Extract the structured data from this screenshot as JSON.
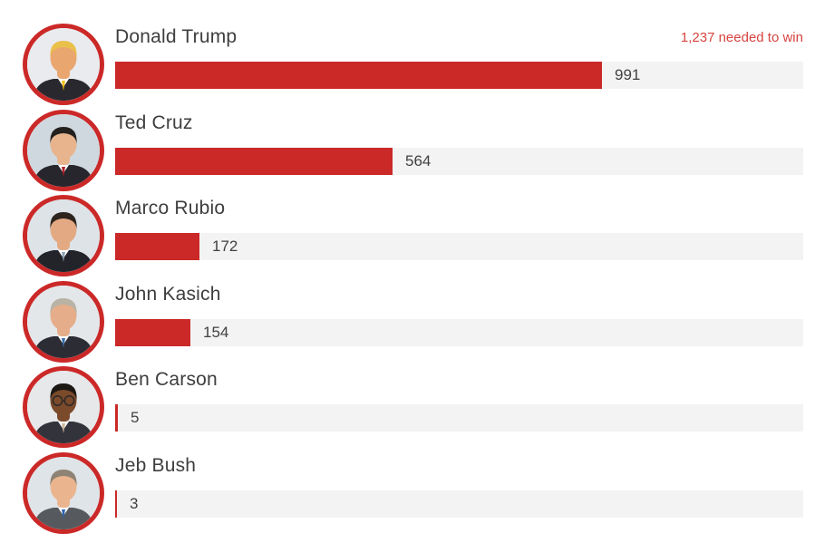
{
  "annotation": {
    "label": "1,237 needed to win",
    "color": "#d6453f"
  },
  "chart_data": {
    "type": "bar",
    "orientation": "horizontal",
    "title": "",
    "xlabel": "",
    "ylabel": "",
    "categories": [
      "Donald Trump",
      "Ted Cruz",
      "Marco Rubio",
      "John Kasich",
      "Ben Carson",
      "Jeb Bush"
    ],
    "values": [
      991,
      564,
      172,
      154,
      5,
      3
    ],
    "value_labels": [
      "991",
      "564",
      "172",
      "154",
      "5",
      "3"
    ],
    "annotation": "1,237 needed to win",
    "needed_to_win": 1237,
    "xlim": [
      0,
      1400
    ],
    "grid": false,
    "legend": false,
    "bar_color": "#cb2928",
    "track_color": "#f3f3f3"
  },
  "colors": {
    "bar": "#cb2928",
    "track": "#f3f3f3",
    "avatar_ring": "#cb2928",
    "name_text": "#3e3e3e",
    "value_text": "#414141",
    "annotation_text": "#d6453f",
    "background": "#ffffff"
  },
  "candidates": [
    {
      "name": "Donald Trump",
      "value_label": "991",
      "delegates": 991,
      "avatar": {
        "bg": "#e9ebee",
        "skin": "#eaa66f",
        "hair": "#e9c04a",
        "suit": "#28282e",
        "tie": "#f2c012",
        "glasses": false
      }
    },
    {
      "name": "Ted Cruz",
      "value_label": "564",
      "delegates": 564,
      "avatar": {
        "bg": "#cfd8de",
        "skin": "#e8b48d",
        "hair": "#23201e",
        "suit": "#26262c",
        "tie": "#b5222a",
        "glasses": false
      }
    },
    {
      "name": "Marco Rubio",
      "value_label": "172",
      "delegates": 172,
      "avatar": {
        "bg": "#dde3e7",
        "skin": "#e3a983",
        "hair": "#2e241e",
        "suit": "#23232a",
        "tie": "#8fa6b8",
        "glasses": false
      }
    },
    {
      "name": "John Kasich",
      "value_label": "154",
      "delegates": 154,
      "avatar": {
        "bg": "#e3e7ea",
        "skin": "#e5ad89",
        "hair": "#b9b3a6",
        "suit": "#2c2c34",
        "tie": "#3a6ea8",
        "glasses": false
      }
    },
    {
      "name": "Ben Carson",
      "value_label": "5",
      "delegates": 5,
      "avatar": {
        "bg": "#e6e8ea",
        "skin": "#7a4a2b",
        "hair": "#1c1814",
        "suit": "#33333b",
        "tie": "#cbb89a",
        "glasses": true
      }
    },
    {
      "name": "Jeb Bush",
      "value_label": "3",
      "delegates": 3,
      "avatar": {
        "bg": "#dfe4e8",
        "skin": "#eab58e",
        "hair": "#8e8374",
        "suit": "#565a5e",
        "tie": "#2f63b0",
        "glasses": false
      }
    }
  ]
}
